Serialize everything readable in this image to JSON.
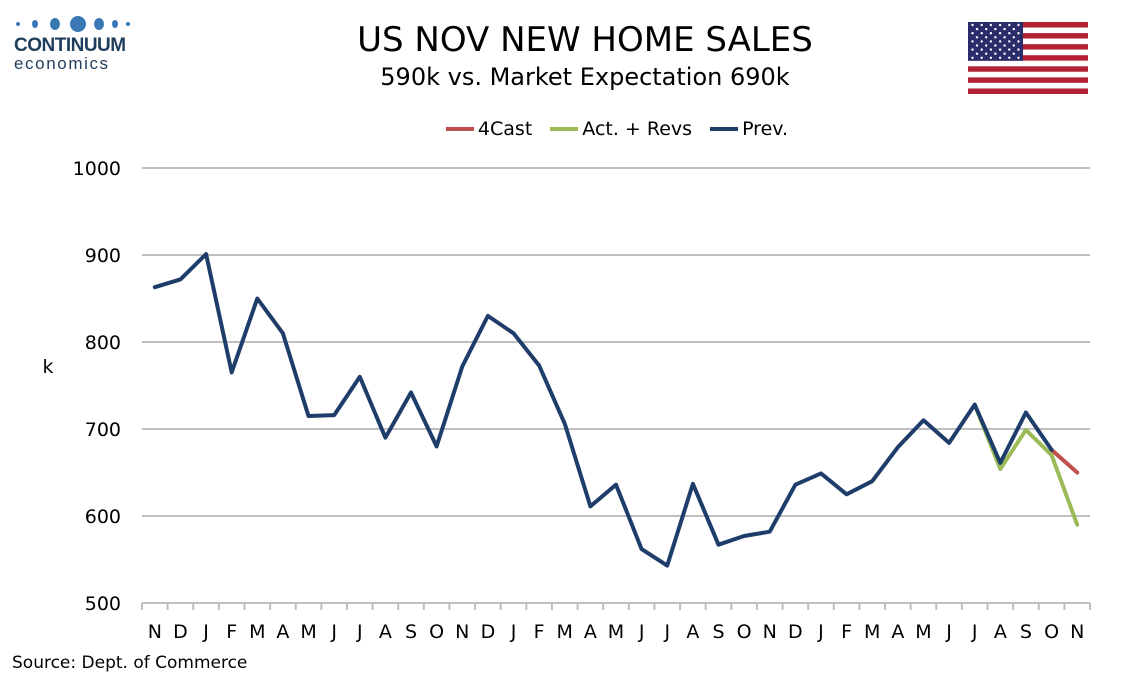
{
  "logo": {
    "name": "CONTINUUM",
    "sub": "economics"
  },
  "flag": {
    "name": "us-flag-icon"
  },
  "chart_data": {
    "type": "line",
    "title": "US NOV NEW HOME SALES",
    "subtitle": "590k vs. Market Expectation 690k",
    "xlabel": "",
    "ylabel": "k",
    "ylim": [
      500,
      1000
    ],
    "yticks": [
      500,
      600,
      700,
      800,
      900,
      1000
    ],
    "grid": true,
    "legend_position": "top-center",
    "categories": [
      "N",
      "D",
      "J",
      "F",
      "M",
      "A",
      "M",
      "J",
      "J",
      "A",
      "S",
      "O",
      "N",
      "D",
      "J",
      "F",
      "M",
      "A",
      "M",
      "J",
      "J",
      "A",
      "S",
      "O",
      "N",
      "D",
      "J",
      "F",
      "M",
      "A",
      "M",
      "J",
      "J",
      "A",
      "S",
      "O",
      "N"
    ],
    "series": [
      {
        "name": "4Cast",
        "color": "#c0504d",
        "values": [
          null,
          null,
          null,
          null,
          null,
          null,
          null,
          null,
          null,
          null,
          null,
          null,
          null,
          null,
          null,
          null,
          null,
          null,
          null,
          null,
          null,
          null,
          null,
          null,
          null,
          null,
          null,
          null,
          null,
          null,
          null,
          null,
          null,
          null,
          null,
          676,
          650
        ]
      },
      {
        "name": "Act. + Revs",
        "color": "#9bbb59",
        "values": [
          null,
          null,
          null,
          null,
          null,
          null,
          null,
          null,
          null,
          null,
          null,
          null,
          null,
          null,
          null,
          null,
          null,
          null,
          null,
          null,
          null,
          null,
          null,
          null,
          null,
          null,
          null,
          null,
          null,
          null,
          null,
          null,
          728,
          654,
          699,
          670,
          590
        ]
      },
      {
        "name": "Prev.",
        "color": "#1f3d6b",
        "values": [
          863,
          872,
          901,
          765,
          850,
          810,
          715,
          716,
          760,
          690,
          742,
          680,
          772,
          830,
          810,
          773,
          706,
          611,
          636,
          562,
          543,
          637,
          567,
          577,
          582,
          636,
          649,
          625,
          640,
          679,
          710,
          684,
          728,
          661,
          719,
          676,
          null
        ]
      }
    ]
  },
  "source": "Source: Dept. of Commerce"
}
